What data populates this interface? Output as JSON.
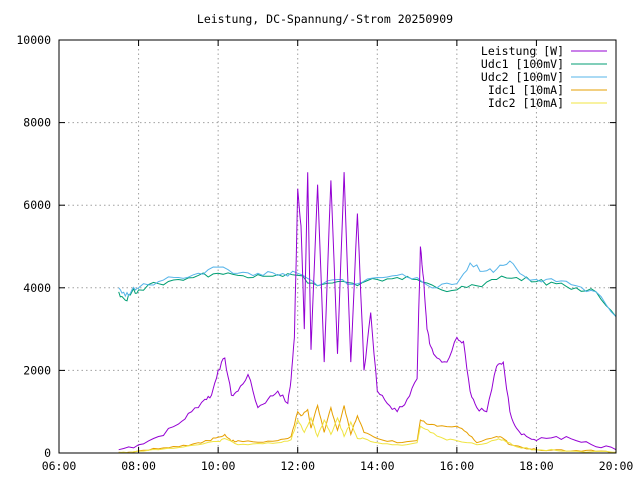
{
  "chart_data": {
    "type": "line",
    "title": "Leistung, DC-Spannung/-Strom 20250909",
    "xlabel": "",
    "ylabel": "",
    "x_ticks": [
      "06:00",
      "08:00",
      "10:00",
      "12:00",
      "14:00",
      "16:00",
      "18:00",
      "20:00"
    ],
    "y_ticks": [
      "0",
      "2000",
      "4000",
      "6000",
      "8000",
      "10000"
    ],
    "xlim_hours": [
      6,
      20
    ],
    "ylim": [
      0,
      10000
    ],
    "grid": true,
    "legend_position": "top-right",
    "series": [
      {
        "name": "Leistung [W]",
        "color": "#9400d3",
        "x": [
          "07:30",
          "08:00",
          "08:30",
          "09:00",
          "09:20",
          "09:40",
          "09:50",
          "10:00",
          "10:10",
          "10:20",
          "10:30",
          "10:45",
          "11:00",
          "11:15",
          "11:30",
          "11:45",
          "11:50",
          "11:55",
          "12:00",
          "12:05",
          "12:10",
          "12:15",
          "12:20",
          "12:30",
          "12:40",
          "12:50",
          "13:00",
          "13:10",
          "13:20",
          "13:30",
          "13:40",
          "13:50",
          "14:00",
          "14:15",
          "14:30",
          "14:45",
          "15:00",
          "15:05",
          "15:10",
          "15:15",
          "15:20",
          "15:30",
          "15:45",
          "16:00",
          "16:10",
          "16:20",
          "16:30",
          "16:45",
          "17:00",
          "17:10",
          "17:20",
          "17:30",
          "17:45",
          "18:00",
          "18:30",
          "19:00",
          "19:30",
          "20:00"
        ],
        "y": [
          80,
          200,
          400,
          700,
          1000,
          1300,
          1400,
          2000,
          2300,
          1400,
          1500,
          1900,
          1100,
          1300,
          1500,
          1200,
          1800,
          2800,
          6400,
          5500,
          3000,
          6800,
          2500,
          6500,
          2200,
          6600,
          2400,
          6800,
          2200,
          5800,
          2000,
          3400,
          1500,
          1200,
          1000,
          1300,
          1800,
          5000,
          4200,
          3000,
          2600,
          2300,
          2200,
          2800,
          2700,
          1500,
          1100,
          1000,
          2100,
          2200,
          1000,
          600,
          400,
          300,
          400,
          300,
          150,
          80
        ]
      },
      {
        "name": "Udc1 [100mV]",
        "color": "#009e73",
        "x": [
          "07:30",
          "07:40",
          "07:50",
          "08:00",
          "08:30",
          "09:00",
          "09:30",
          "10:00",
          "10:30",
          "11:00",
          "11:30",
          "12:00",
          "12:30",
          "13:00",
          "13:30",
          "14:00",
          "14:30",
          "15:00",
          "15:30",
          "16:00",
          "16:30",
          "17:00",
          "17:30",
          "18:00",
          "18:30",
          "19:00",
          "19:30",
          "20:00"
        ],
        "y": [
          3900,
          3700,
          3900,
          3950,
          4100,
          4200,
          4300,
          4350,
          4300,
          4320,
          4320,
          4300,
          4050,
          4150,
          4050,
          4200,
          4250,
          4200,
          4000,
          3950,
          4050,
          4200,
          4250,
          4150,
          4100,
          4000,
          3900,
          3300
        ]
      },
      {
        "name": "Udc2 [100mV]",
        "color": "#56b4e9",
        "x": [
          "07:30",
          "07:40",
          "07:50",
          "08:00",
          "08:30",
          "09:00",
          "09:30",
          "10:00",
          "10:30",
          "11:00",
          "11:30",
          "12:00",
          "12:30",
          "13:00",
          "13:30",
          "14:00",
          "14:30",
          "15:00",
          "15:30",
          "16:00",
          "16:20",
          "16:40",
          "17:00",
          "17:20",
          "17:40",
          "18:00",
          "18:30",
          "19:00",
          "19:30",
          "20:00"
        ],
        "y": [
          4000,
          3800,
          3950,
          4000,
          4150,
          4250,
          4350,
          4500,
          4350,
          4350,
          4300,
          4350,
          4050,
          4200,
          4100,
          4250,
          4300,
          4250,
          4000,
          4100,
          4600,
          4400,
          4450,
          4650,
          4300,
          4200,
          4150,
          4050,
          3900,
          3300
        ]
      },
      {
        "name": "Idc1 [10mA]",
        "color": "#e69f00",
        "x": [
          "07:30",
          "08:00",
          "08:30",
          "09:00",
          "09:30",
          "09:45",
          "10:00",
          "10:10",
          "10:20",
          "10:30",
          "11:00",
          "11:30",
          "11:50",
          "12:00",
          "12:05",
          "12:15",
          "12:20",
          "12:30",
          "12:40",
          "12:50",
          "13:00",
          "13:10",
          "13:20",
          "13:30",
          "13:40",
          "14:00",
          "14:30",
          "15:00",
          "15:05",
          "15:15",
          "15:30",
          "16:00",
          "16:15",
          "16:30",
          "17:00",
          "17:10",
          "17:20",
          "17:45",
          "18:00",
          "18:30",
          "19:00",
          "19:30",
          "20:00"
        ],
        "y": [
          20,
          50,
          100,
          150,
          250,
          300,
          380,
          450,
          280,
          300,
          260,
          300,
          400,
          1000,
          900,
          1050,
          600,
          1150,
          500,
          1100,
          550,
          1150,
          450,
          900,
          500,
          350,
          250,
          300,
          800,
          700,
          650,
          650,
          500,
          250,
          400,
          350,
          200,
          100,
          80,
          80,
          60,
          40,
          20
        ]
      },
      {
        "name": "Idc2 [10mA]",
        "color": "#f0e442",
        "x": [
          "07:30",
          "08:00",
          "08:30",
          "09:00",
          "09:30",
          "10:00",
          "10:10",
          "10:30",
          "11:00",
          "11:30",
          "11:50",
          "12:00",
          "12:10",
          "12:20",
          "12:30",
          "12:40",
          "12:50",
          "13:00",
          "13:10",
          "13:20",
          "13:30",
          "13:40",
          "14:00",
          "14:30",
          "15:00",
          "15:05",
          "15:20",
          "15:40",
          "16:00",
          "16:30",
          "17:00",
          "17:10",
          "17:30",
          "18:00",
          "18:30",
          "19:00",
          "20:00"
        ],
        "y": [
          10,
          40,
          80,
          130,
          200,
          280,
          350,
          200,
          230,
          250,
          320,
          800,
          500,
          850,
          400,
          800,
          450,
          850,
          400,
          750,
          350,
          350,
          250,
          200,
          250,
          650,
          500,
          350,
          300,
          200,
          320,
          320,
          150,
          80,
          60,
          40,
          10
        ]
      }
    ]
  }
}
